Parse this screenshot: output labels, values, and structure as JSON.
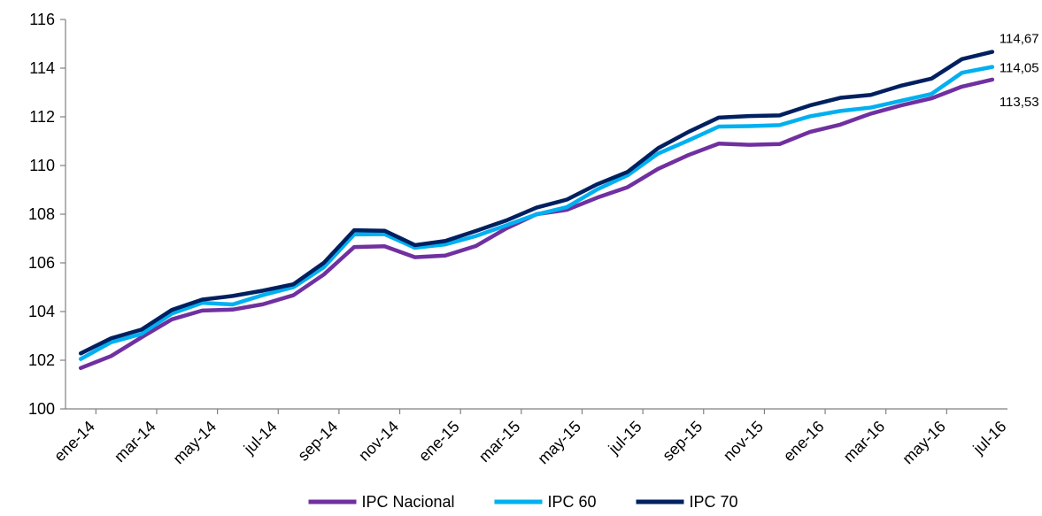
{
  "chart_data": {
    "type": "line",
    "title": "",
    "xlabel": "",
    "ylabel": "",
    "ylim": [
      100,
      116
    ],
    "yticks": [
      "100",
      "102",
      "104",
      "106",
      "108",
      "110",
      "112",
      "114",
      "116"
    ],
    "x": [
      "ene-14",
      "feb-14",
      "mar-14",
      "abr-14",
      "may-14",
      "jun-14",
      "jul-14",
      "ago-14",
      "sep-14",
      "oct-14",
      "nov-14",
      "dic-14",
      "ene-15",
      "feb-15",
      "mar-15",
      "abr-15",
      "may-15",
      "jun-15",
      "jul-15",
      "ago-15",
      "sep-15",
      "oct-15",
      "nov-15",
      "dic-15",
      "ene-16",
      "feb-16",
      "mar-16",
      "abr-16",
      "may-16",
      "jun-16",
      "jul-16"
    ],
    "xtick_labels": [
      "ene-14",
      "mar-14",
      "may-14",
      "jul-14",
      "sep-14",
      "nov-14",
      "ene-15",
      "mar-15",
      "may-15",
      "jul-15",
      "sep-15",
      "nov-15",
      "ene-16",
      "mar-16",
      "may-16",
      "jul-16"
    ],
    "series": [
      {
        "name": "IPC Nacional",
        "color": "#7030A0",
        "end_label": "113,53",
        "values": [
          101.68,
          102.17,
          102.94,
          103.68,
          104.04,
          104.08,
          104.3,
          104.67,
          105.52,
          106.65,
          106.68,
          106.23,
          106.3,
          106.69,
          107.41,
          108.0,
          108.18,
          108.68,
          109.11,
          109.86,
          110.43,
          110.9,
          110.85,
          110.88,
          111.38,
          111.68,
          112.13,
          112.47,
          112.76,
          113.24,
          113.53
        ]
      },
      {
        "name": "IPC 60",
        "color": "#00B0F0",
        "end_label": "114,05",
        "values": [
          102.05,
          102.74,
          103.08,
          103.92,
          104.36,
          104.29,
          104.68,
          105.0,
          105.82,
          107.17,
          107.18,
          106.62,
          106.76,
          107.1,
          107.54,
          107.99,
          108.29,
          109.02,
          109.6,
          110.49,
          111.03,
          111.6,
          111.62,
          111.66,
          112.02,
          112.24,
          112.38,
          112.66,
          112.94,
          113.81,
          114.05
        ]
      },
      {
        "name": "IPC 70",
        "color": "#002060",
        "end_label": "114,67",
        "values": [
          102.28,
          102.9,
          103.26,
          104.07,
          104.49,
          104.64,
          104.86,
          105.12,
          106.0,
          107.34,
          107.32,
          106.73,
          106.9,
          107.31,
          107.74,
          108.27,
          108.6,
          109.23,
          109.74,
          110.71,
          111.38,
          111.97,
          112.03,
          112.06,
          112.47,
          112.78,
          112.9,
          113.28,
          113.57,
          114.37,
          114.67
        ]
      }
    ],
    "legend": {
      "placement": "bottom-center"
    }
  }
}
